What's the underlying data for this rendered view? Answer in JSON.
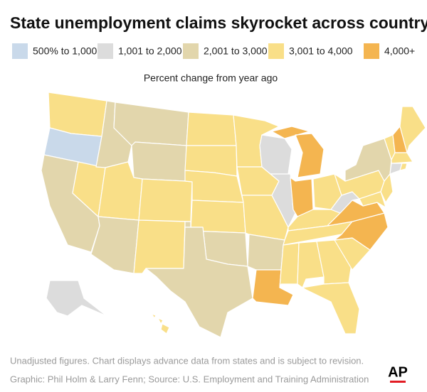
{
  "title": "State unemployment claims skyrocket across country",
  "legend": [
    {
      "label": "500% to 1,000",
      "color": "#c9d9ea"
    },
    {
      "label": "1,001 to 2,000",
      "color": "#dcdcdc"
    },
    {
      "label": "2,001 to 3,000",
      "color": "#e2d6ac"
    },
    {
      "label": "3,001 to 4,000",
      "color": "#f9df88"
    },
    {
      "label": "4,000+",
      "color": "#f4b550"
    }
  ],
  "subtitle": "Percent change from year ago",
  "footnotes": [
    "Unadjusted figures. Chart displays advance data from states and is subject to revision.",
    "Graphic: Phil Holm & Larry Fenn; Source: U.S. Employment and Training Administration"
  ],
  "logo": "AP"
}
